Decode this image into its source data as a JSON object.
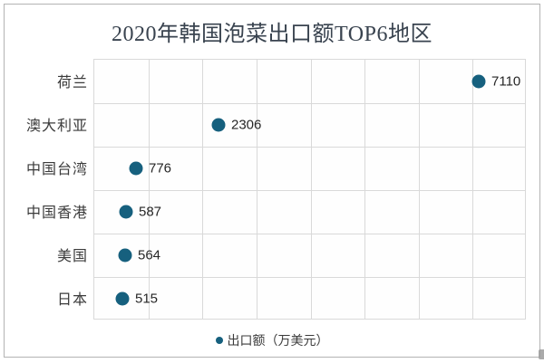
{
  "title": "2020年韩国泡菜出口额TOP6地区",
  "legend": {
    "marker": "dot",
    "label": "出口额（万美元）"
  },
  "chart_data": {
    "type": "scatter",
    "orientation": "horizontal",
    "title": "2020年韩国泡菜出口额TOP6地区",
    "categories": [
      "荷兰",
      "澳大利亚",
      "中国台湾",
      "中国香港",
      "美国",
      "日本"
    ],
    "values": [
      7110,
      2306,
      776,
      587,
      564,
      515
    ],
    "series_name": "出口额（万美元）",
    "xlabel": "",
    "ylabel": "",
    "xlim": [
      0,
      8000
    ],
    "x_gridline_step": 1000,
    "grid": true,
    "legend_position": "bottom",
    "data_labels_shown": true
  },
  "colors": {
    "background": "#ffffff",
    "plot_background": "#fefefe",
    "frame_border": "#b3b3b3",
    "grid_color": "#d9d9d9",
    "marker_color": "#16607e",
    "title_color": "#39434f",
    "label_color": "#3b3b3b",
    "value_color": "#262626"
  }
}
